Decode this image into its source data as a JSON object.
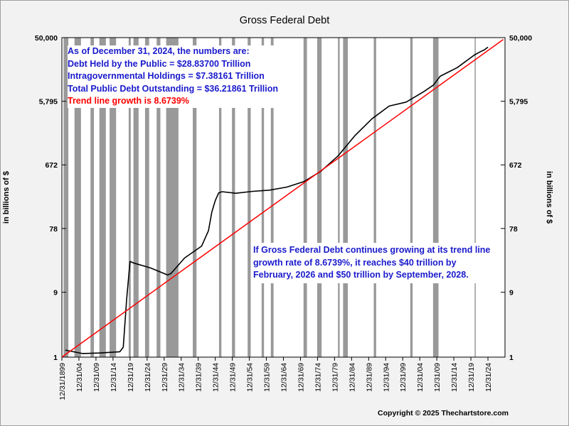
{
  "chart_data": {
    "type": "line",
    "title": "Gross Federal Debt",
    "ylabel": "in billions of $",
    "yscale": "log",
    "ylim": [
      1,
      50000
    ],
    "y_tick_labels": [
      "50,000",
      "5,795",
      "672",
      "78",
      "9",
      "1"
    ],
    "y_tick_values": [
      50000,
      5795,
      672,
      78,
      9,
      1
    ],
    "x_tick_labels": [
      "12/31/1899",
      "12/31/04",
      "12/31/09",
      "12/31/14",
      "12/31/19",
      "12/31/24",
      "12/31/29",
      "12/31/34",
      "12/31/39",
      "12/31/44",
      "12/31/49",
      "12/31/54",
      "12/31/59",
      "12/31/64",
      "12/31/69",
      "12/31/74",
      "12/31/79",
      "12/31/84",
      "12/31/89",
      "12/31/94",
      "12/31/99",
      "12/31/04",
      "12/31/09",
      "12/31/14",
      "12/31/19",
      "12/31/24"
    ],
    "x_tick_years": [
      1899,
      1904,
      1909,
      1914,
      1919,
      1924,
      1929,
      1934,
      1939,
      1944,
      1949,
      1954,
      1959,
      1964,
      1969,
      1974,
      1979,
      1984,
      1989,
      1994,
      1999,
      2004,
      2009,
      2014,
      2019,
      2024
    ],
    "xlim": [
      1899,
      2029
    ],
    "recessions": [
      [
        1899.5,
        1900.9
      ],
      [
        1902.7,
        1904.6
      ],
      [
        1907.4,
        1908.4
      ],
      [
        1910.0,
        1911.9
      ],
      [
        1913.0,
        1914.9
      ],
      [
        1918.6,
        1919.2
      ],
      [
        1920.0,
        1921.5
      ],
      [
        1923.4,
        1924.6
      ],
      [
        1926.8,
        1927.9
      ],
      [
        1929.6,
        1933.2
      ],
      [
        1937.4,
        1938.5
      ],
      [
        1945.1,
        1945.8
      ],
      [
        1948.9,
        1949.8
      ],
      [
        1953.5,
        1954.4
      ],
      [
        1957.6,
        1958.3
      ],
      [
        1960.3,
        1961.1
      ],
      [
        1969.9,
        1970.9
      ],
      [
        1973.9,
        1975.2
      ],
      [
        1980.0,
        1980.5
      ],
      [
        1981.5,
        1982.9
      ],
      [
        1990.5,
        1991.2
      ],
      [
        2001.2,
        2001.9
      ],
      [
        2007.9,
        2009.5
      ],
      [
        2020.1,
        2020.3
      ]
    ],
    "series": [
      {
        "name": "",
        "color": "#000000",
        "x": [
          1900,
          1905,
          1910,
          1916,
          1917,
          1918,
          1919,
          1920,
          1925,
          1930,
          1931,
          1935,
          1940,
          1942,
          1943,
          1944,
          1945,
          1946,
          1950,
          1955,
          1960,
          1965,
          1970,
          1975,
          1980,
          1985,
          1990,
          1995,
          2000,
          2005,
          2008,
          2010,
          2015,
          2020,
          2021,
          2022,
          2023,
          2024
        ],
        "y": [
          1.27,
          1.13,
          1.15,
          1.2,
          1.4,
          7.2,
          25.5,
          24.3,
          20.5,
          16.2,
          17.0,
          28.7,
          43.0,
          72.4,
          137,
          201,
          260,
          271,
          257,
          274,
          286,
          317,
          381,
          542,
          909,
          1817,
          3206,
          4921,
          5629,
          7933,
          10025,
          13529,
          18120,
          27748,
          29617,
          31420,
          33167,
          36219
        ]
      },
      {
        "name": "",
        "color": "#ff0000",
        "x": [
          1899,
          2028.5
        ],
        "y": [
          1.0,
          47000
        ]
      }
    ]
  },
  "info": {
    "line1": "As of December 31, 2024, the numbers are:",
    "line2": "Debt Held by the Public = $28.83700 Trillion",
    "line3": "Intragovernmental Holdings = $7.38161 Trillion",
    "line4": "Total Public Debt Outstanding = $36.21861 Trillion",
    "line5": "Trend line growth is 8.6739%"
  },
  "note": "If Gross Federal Debt continues growing at its trend line growth rate of 8.6739%, it reaches $40 trillion by February, 2026 and $50 trillion by September, 2028.",
  "copyright": "Copyright © 2025 Thechartstore.com"
}
